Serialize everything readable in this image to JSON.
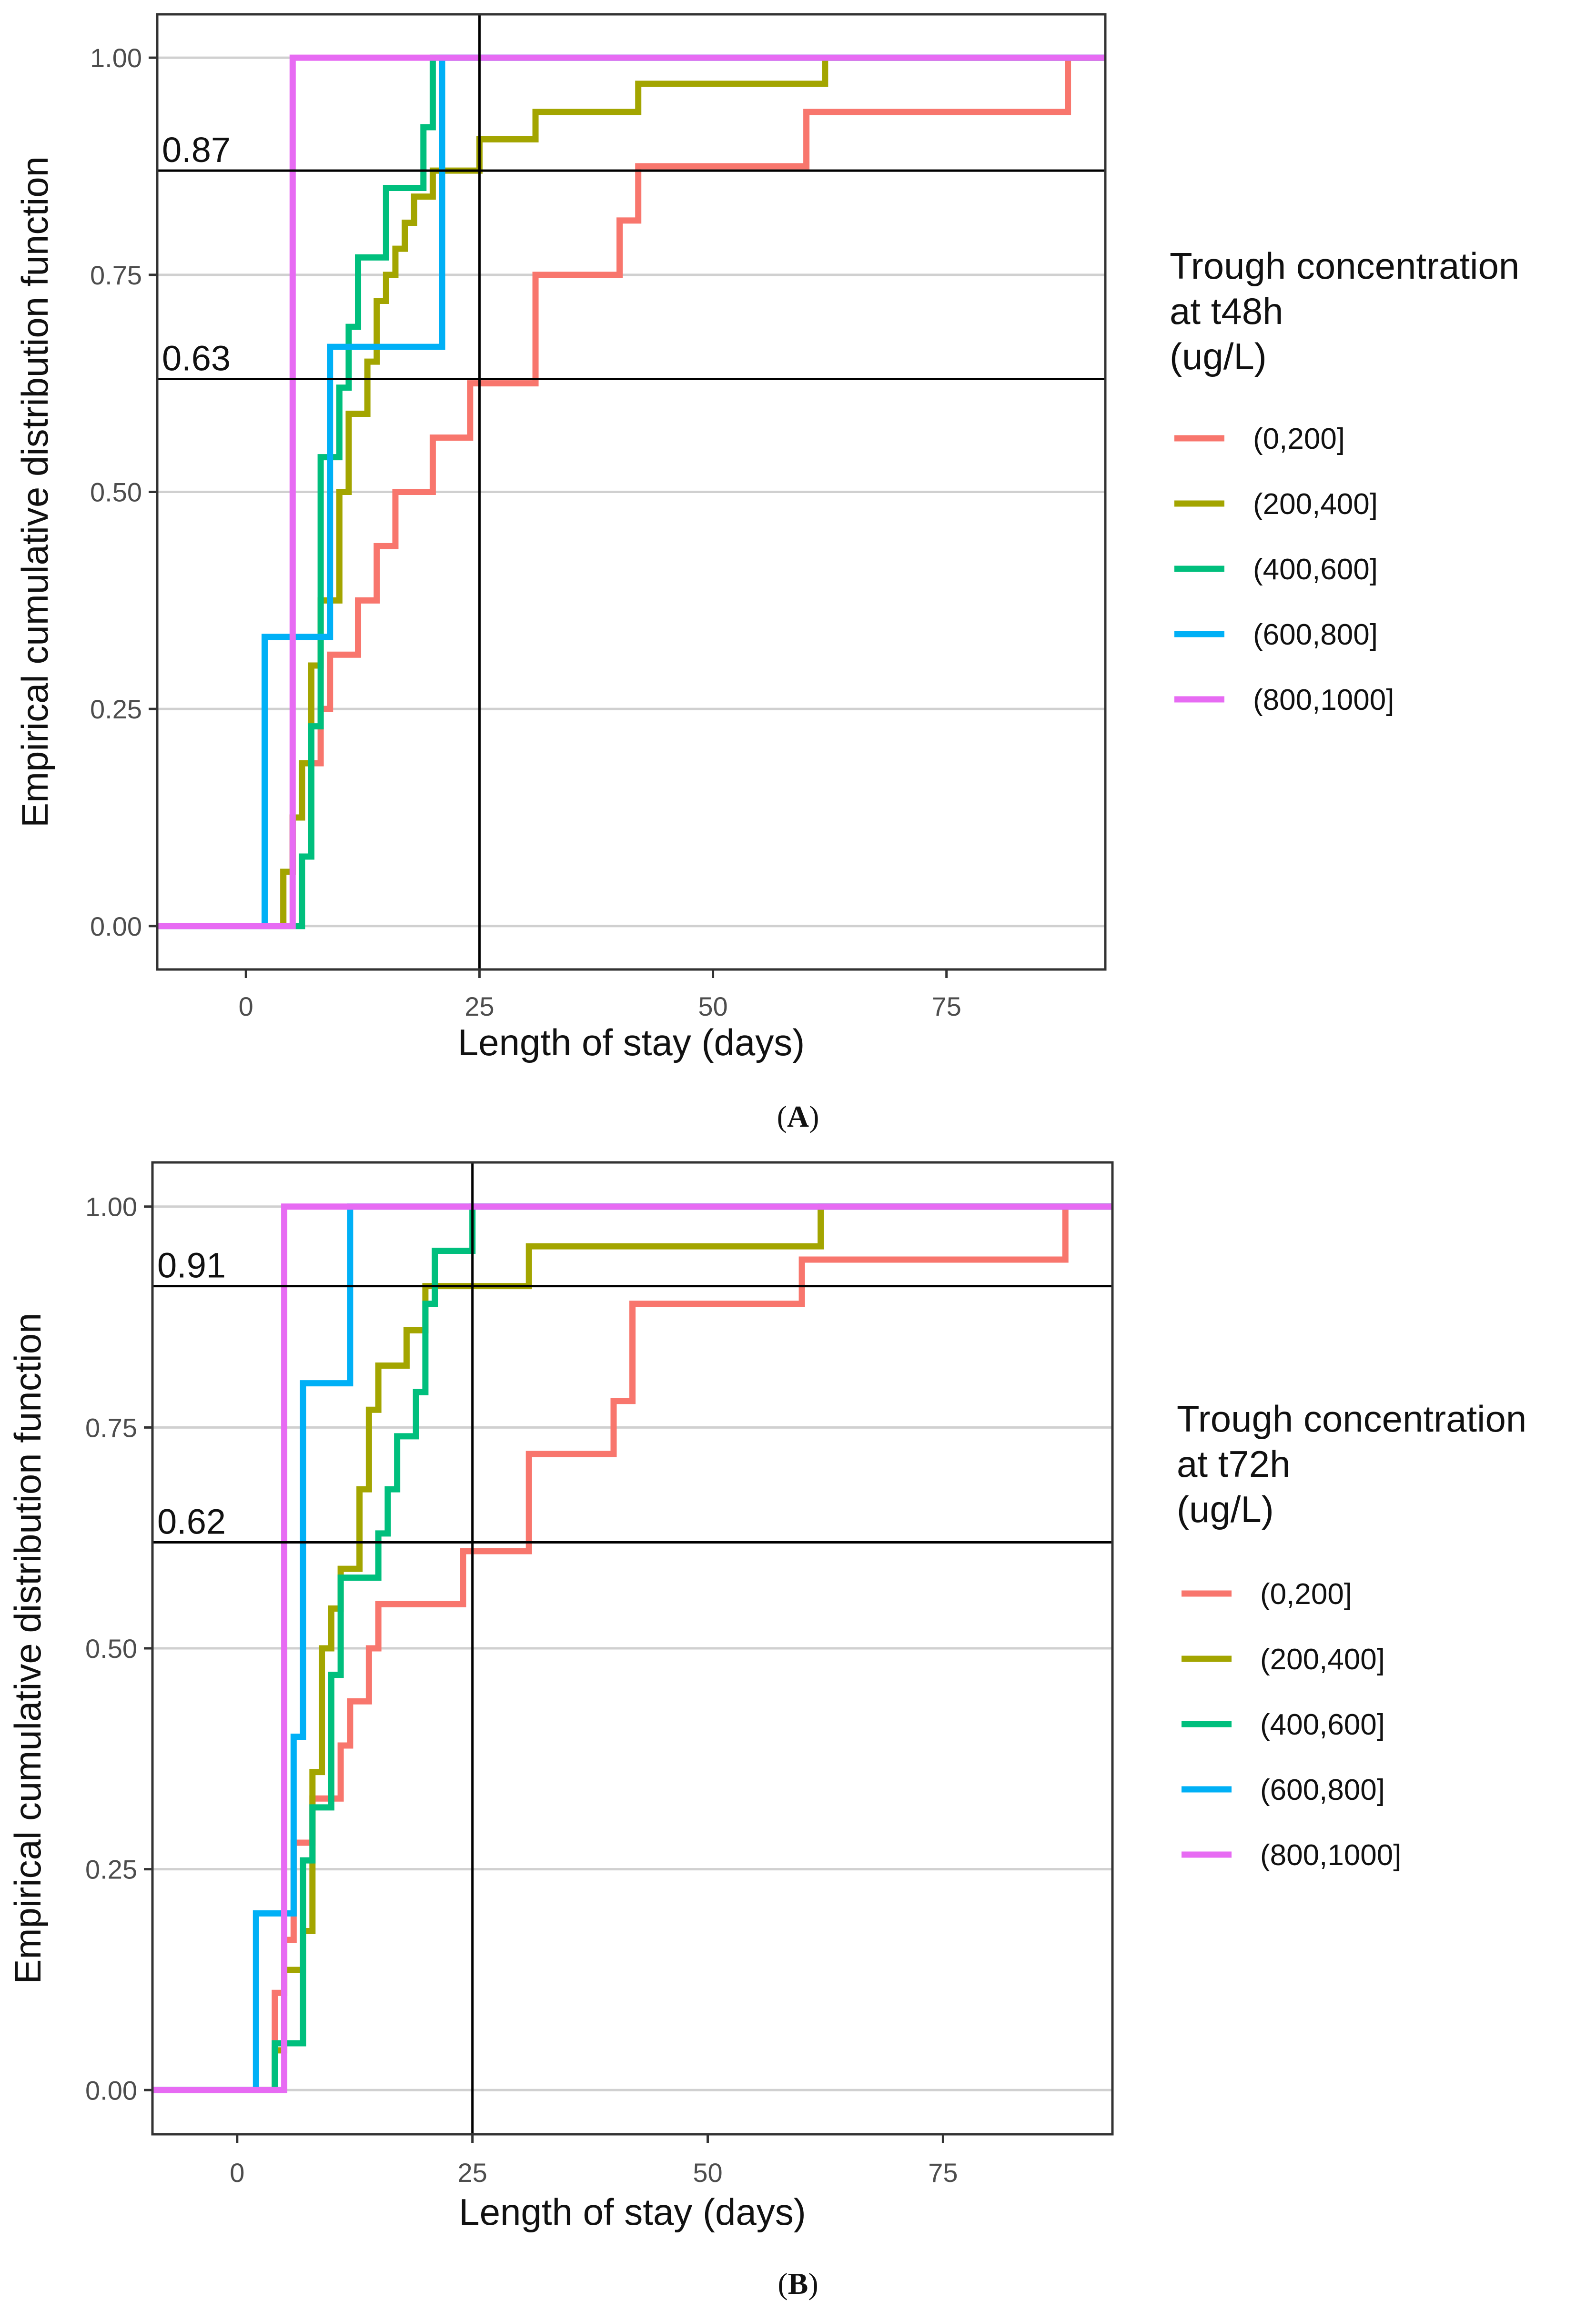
{
  "chart_data": [
    {
      "type": "line",
      "panel": "A",
      "xlabel": "Length of stay (days)",
      "ylabel": "Empirical cumulative distribution function",
      "xlim": [
        -9.5,
        92
      ],
      "ylim": [
        -0.05,
        1.05
      ],
      "x_ticks": [
        0,
        25,
        50,
        75
      ],
      "y_ticks": [
        "0.00",
        "0.25",
        "0.50",
        "0.75",
        "1.00"
      ],
      "grid": "horizontal",
      "legend_position": "right",
      "legend_title": [
        "Trough concentration",
        "at t48h",
        "(ug/L)"
      ],
      "reference_lines": {
        "vertical_x": 25,
        "horizontal_y": [
          0.87,
          0.63
        ]
      },
      "annotations": [
        {
          "text": "0.87",
          "y": 0.87
        },
        {
          "text": "0.63",
          "y": 0.63
        }
      ],
      "series": [
        {
          "name": "(0,200]",
          "color": "#F8766D",
          "steps": [
            [
              -9.5,
              0
            ],
            [
              4,
              0.0625
            ],
            [
              5,
              0.125
            ],
            [
              6,
              0.1875
            ],
            [
              8,
              0.25
            ],
            [
              9,
              0.3125
            ],
            [
              12,
              0.375
            ],
            [
              14,
              0.4375
            ],
            [
              16,
              0.5
            ],
            [
              20,
              0.5625
            ],
            [
              24,
              0.625
            ],
            [
              31,
              0.75
            ],
            [
              40,
              0.8125
            ],
            [
              42,
              0.875
            ],
            [
              60,
              0.9375
            ],
            [
              88,
              1.0
            ],
            [
              92,
              1.0
            ]
          ]
        },
        {
          "name": "(200,400]",
          "color": "#A3A500",
          "steps": [
            [
              -9.5,
              0
            ],
            [
              4,
              0.0625
            ],
            [
              5,
              0.125
            ],
            [
              6,
              0.1875
            ],
            [
              7,
              0.3
            ],
            [
              8,
              0.375
            ],
            [
              10,
              0.5
            ],
            [
              11,
              0.59
            ],
            [
              13,
              0.65
            ],
            [
              14,
              0.72
            ],
            [
              15,
              0.75
            ],
            [
              16,
              0.78
            ],
            [
              17,
              0.81
            ],
            [
              18,
              0.84
            ],
            [
              20,
              0.87
            ],
            [
              25,
              0.906
            ],
            [
              31,
              0.9375
            ],
            [
              42,
              0.97
            ],
            [
              62,
              1.0
            ],
            [
              92,
              1.0
            ]
          ]
        },
        {
          "name": "(400,600]",
          "color": "#00BF7D",
          "steps": [
            [
              -9.5,
              0
            ],
            [
              6,
              0.08
            ],
            [
              7,
              0.23
            ],
            [
              8,
              0.54
            ],
            [
              10,
              0.62
            ],
            [
              11,
              0.69
            ],
            [
              12,
              0.77
            ],
            [
              15,
              0.85
            ],
            [
              19,
              0.92
            ],
            [
              20,
              1.0
            ],
            [
              92,
              1.0
            ]
          ]
        },
        {
          "name": "(600,800]",
          "color": "#00B0F6",
          "steps": [
            [
              -9.5,
              0
            ],
            [
              2,
              0.333
            ],
            [
              9,
              0.667
            ],
            [
              21,
              1.0
            ],
            [
              92,
              1.0
            ]
          ]
        },
        {
          "name": "(800,1000]",
          "color": "#E76BF3",
          "steps": [
            [
              -9.5,
              0
            ],
            [
              5,
              1.0
            ],
            [
              92,
              1.0
            ]
          ]
        }
      ],
      "caption": "A"
    },
    {
      "type": "line",
      "panel": "B",
      "xlabel": "Length of stay (days)",
      "ylabel": "Empirical cumulative distribution function",
      "xlim": [
        -9,
        93
      ],
      "ylim": [
        -0.05,
        1.05
      ],
      "x_ticks": [
        0,
        25,
        50,
        75
      ],
      "y_ticks": [
        "0.00",
        "0.25",
        "0.50",
        "0.75",
        "1.00"
      ],
      "grid": "horizontal",
      "legend_position": "right",
      "legend_title": [
        "Trough concentration",
        "at t72h",
        "(ug/L)"
      ],
      "reference_lines": {
        "vertical_x": 25,
        "horizontal_y": [
          0.91,
          0.62
        ]
      },
      "annotations": [
        {
          "text": "0.91",
          "y": 0.91
        },
        {
          "text": "0.62",
          "y": 0.62
        }
      ],
      "series": [
        {
          "name": "(0,200]",
          "color": "#F8766D",
          "steps": [
            [
              -9,
              0
            ],
            [
              4,
              0.11
            ],
            [
              5,
              0.17
            ],
            [
              6,
              0.28
            ],
            [
              8,
              0.33
            ],
            [
              11,
              0.39
            ],
            [
              12,
              0.44
            ],
            [
              14,
              0.5
            ],
            [
              15,
              0.55
            ],
            [
              24,
              0.61
            ],
            [
              31,
              0.72
            ],
            [
              40,
              0.78
            ],
            [
              42,
              0.89
            ],
            [
              60,
              0.94
            ],
            [
              88,
              1.0
            ],
            [
              93,
              1.0
            ]
          ]
        },
        {
          "name": "(200,400]",
          "color": "#A3A500",
          "steps": [
            [
              -9,
              0
            ],
            [
              4,
              0.045
            ],
            [
              5,
              0.136
            ],
            [
              7,
              0.18
            ],
            [
              8,
              0.36
            ],
            [
              9,
              0.5
            ],
            [
              10,
              0.545
            ],
            [
              11,
              0.59
            ],
            [
              13,
              0.68
            ],
            [
              14,
              0.77
            ],
            [
              15,
              0.82
            ],
            [
              18,
              0.86
            ],
            [
              20,
              0.91
            ],
            [
              31,
              0.955
            ],
            [
              62,
              1.0
            ],
            [
              93,
              1.0
            ]
          ]
        },
        {
          "name": "(400,600]",
          "color": "#00BF7D",
          "steps": [
            [
              -9,
              0
            ],
            [
              4,
              0.053
            ],
            [
              7,
              0.26
            ],
            [
              8,
              0.32
            ],
            [
              10,
              0.47
            ],
            [
              11,
              0.58
            ],
            [
              15,
              0.63
            ],
            [
              16,
              0.68
            ],
            [
              17,
              0.74
            ],
            [
              19,
              0.79
            ],
            [
              20,
              0.89
            ],
            [
              21,
              0.95
            ],
            [
              25,
              1.0
            ],
            [
              93,
              1.0
            ]
          ]
        },
        {
          "name": "(600,800]",
          "color": "#00B0F6",
          "steps": [
            [
              -9,
              0
            ],
            [
              2,
              0.2
            ],
            [
              6,
              0.4
            ],
            [
              7,
              0.8
            ],
            [
              12,
              1.0
            ],
            [
              93,
              1.0
            ]
          ]
        },
        {
          "name": "(800,1000]",
          "color": "#E76BF3",
          "steps": [
            [
              -9,
              0
            ],
            [
              5,
              1.0
            ],
            [
              93,
              1.0
            ]
          ]
        }
      ],
      "caption": "B"
    }
  ]
}
